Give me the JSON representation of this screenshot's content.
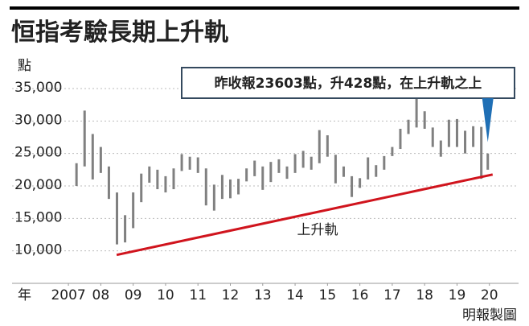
{
  "chart_data": {
    "type": "range-bar",
    "title": "恒指考驗長期上升軌",
    "y_label": "點",
    "x_label": "年",
    "source": "明報製圖",
    "annotation": "昨收報23603點，升428點，在上升軌之上",
    "color": "#808080",
    "grid": true,
    "xlim": [
      2005.76,
      2021.4
    ],
    "ylim": [
      5000,
      35000
    ],
    "yticks": [
      {
        "value": 10000,
        "label": "10,000"
      },
      {
        "value": 15000,
        "label": "15,000"
      },
      {
        "value": 20000,
        "label": "20,000"
      },
      {
        "value": 25000,
        "label": "25,000"
      },
      {
        "value": 30000,
        "label": "30,000"
      },
      {
        "value": 35000,
        "label": "35,000"
      }
    ],
    "xticks": [
      {
        "value": 2007.5,
        "label": "2007"
      },
      {
        "value": 2008.5,
        "label": "08"
      },
      {
        "value": 2009.5,
        "label": "09"
      },
      {
        "value": 2010.5,
        "label": "10"
      },
      {
        "value": 2011.5,
        "label": "11"
      },
      {
        "value": 2012.5,
        "label": "12"
      },
      {
        "value": 2013.5,
        "label": "13"
      },
      {
        "value": 2014.5,
        "label": "14"
      },
      {
        "value": 2015.5,
        "label": "15"
      },
      {
        "value": 2016.5,
        "label": "16"
      },
      {
        "value": 2017.5,
        "label": "17"
      },
      {
        "value": 2018.5,
        "label": "18"
      },
      {
        "value": 2019.5,
        "label": "19"
      },
      {
        "value": 2020.5,
        "label": "20"
      }
    ],
    "x": [
      2007.75,
      2008,
      2008.25,
      2008.5,
      2008.75,
      2009,
      2009.25,
      2009.5,
      2009.75,
      2010,
      2010.25,
      2010.5,
      2010.75,
      2011,
      2011.25,
      2011.5,
      2011.75,
      2012,
      2012.25,
      2012.5,
      2012.75,
      2013,
      2013.25,
      2013.5,
      2013.75,
      2014,
      2014.25,
      2014.5,
      2014.75,
      2015,
      2015.25,
      2015.5,
      2015.75,
      2016,
      2016.25,
      2016.5,
      2016.75,
      2017,
      2017.25,
      2017.5,
      2017.75,
      2018,
      2018.25,
      2018.5,
      2018.75,
      2019,
      2019.25,
      2019.5,
      2019.75,
      2020,
      2020.25,
      2020.45
    ],
    "highs": [
      23500,
      31600,
      28000,
      26000,
      23000,
      19000,
      15500,
      19000,
      21900,
      23000,
      22500,
      21500,
      22700,
      24900,
      24500,
      24400,
      22700,
      20200,
      21700,
      21000,
      21100,
      22700,
      23900,
      23000,
      23700,
      24100,
      23000,
      24900,
      25400,
      24500,
      28600,
      27800,
      24800,
      23000,
      21500,
      21200,
      24400,
      23200,
      24600,
      26000,
      28800,
      30200,
      33500,
      31500,
      29000,
      27000,
      30200,
      30300,
      28500,
      29200,
      29100,
      25000
    ],
    "lows": [
      20000,
      23000,
      21000,
      22000,
      18000,
      11000,
      11300,
      13500,
      17500,
      20500,
      19500,
      19000,
      19500,
      22300,
      22500,
      22000,
      17000,
      16200,
      18000,
      18100,
      18700,
      20700,
      21500,
      19400,
      20600,
      22000,
      21100,
      22000,
      22800,
      22500,
      23500,
      24500,
      20400,
      21400,
      18300,
      19700,
      21000,
      21400,
      22500,
      24600,
      25700,
      28000,
      29000,
      28800,
      26000,
      24500,
      26000,
      26000,
      25000,
      26000,
      21100,
      22500
    ],
    "trend": {
      "label": "上升軌",
      "color": "#d0141d",
      "x": [
        2008.99,
        2020.6
      ],
      "y": [
        9380,
        21757
      ]
    },
    "pointer_color": "#1f6fb5"
  }
}
